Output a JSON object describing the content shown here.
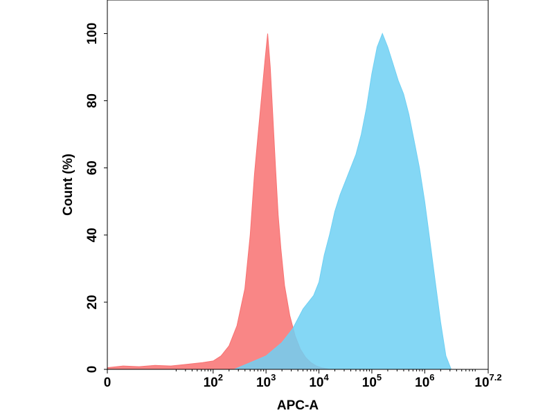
{
  "chart_data": {
    "type": "area",
    "xlabel": "APC-A",
    "ylabel": "Count  (%)",
    "xscale": "log",
    "xlim": [
      0,
      7.2
    ],
    "ylim": [
      0,
      110
    ],
    "grid": false,
    "legend": "none",
    "x_ticks": [
      {
        "base": "0",
        "sup": "",
        "value": 0
      },
      {
        "base": "10",
        "sup": "2",
        "value": 2
      },
      {
        "base": "10",
        "sup": "3",
        "value": 3
      },
      {
        "base": "10",
        "sup": "4",
        "value": 4
      },
      {
        "base": "10",
        "sup": "5",
        "value": 5
      },
      {
        "base": "10",
        "sup": "6",
        "value": 6
      },
      {
        "base": "10",
        "sup": "7.2",
        "value": 7.2
      }
    ],
    "y_ticks": [
      0,
      20,
      40,
      60,
      80,
      100
    ],
    "series": [
      {
        "color": "#f87171",
        "fill_opacity": 0.85,
        "x_log10": [
          0,
          0.3,
          0.6,
          0.9,
          1.2,
          1.5,
          1.8,
          2.0,
          2.15,
          2.3,
          2.45,
          2.6,
          2.7,
          2.78,
          2.85,
          2.92,
          2.98,
          3.03,
          3.08,
          3.13,
          3.18,
          3.23,
          3.28,
          3.35,
          3.45,
          3.55,
          3.65,
          3.75,
          3.85,
          3.95,
          4.05,
          4.2
        ],
        "y": [
          0.5,
          1,
          0.8,
          1.2,
          1,
          1.5,
          2,
          2.5,
          4,
          7,
          13,
          24,
          40,
          58,
          70,
          82,
          92,
          100,
          90,
          75,
          60,
          46,
          36,
          25,
          16,
          10,
          6,
          3.5,
          2,
          1,
          0.5,
          0
        ]
      },
      {
        "color": "#6fd0f3",
        "fill_opacity": 0.85,
        "x_log10": [
          2.4,
          2.7,
          3.0,
          3.3,
          3.5,
          3.7,
          3.9,
          4.0,
          4.1,
          4.2,
          4.3,
          4.4,
          4.5,
          4.6,
          4.7,
          4.8,
          4.9,
          5.0,
          5.1,
          5.2,
          5.3,
          5.4,
          5.5,
          5.6,
          5.7,
          5.8,
          5.9,
          6.0,
          6.1,
          6.2,
          6.3,
          6.4,
          6.5
        ],
        "y": [
          0,
          2,
          4,
          8,
          12,
          18,
          22,
          26,
          34,
          40,
          47,
          52,
          56,
          60,
          64,
          70,
          78,
          88,
          96,
          100,
          96,
          91,
          86,
          82,
          76,
          68,
          60,
          50,
          38,
          26,
          14,
          4,
          0
        ]
      }
    ]
  }
}
